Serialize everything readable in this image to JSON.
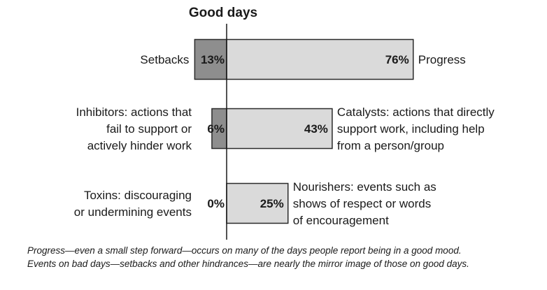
{
  "colors": {
    "negative_bar": "#8e8e8e",
    "positive_bar": "#dadada",
    "bar_stroke": "#2a2a2a",
    "axis": "#1a1a1a"
  },
  "chart_data": {
    "type": "bar",
    "orientation": "horizontal-diverging",
    "title": "Good days",
    "rows": [
      {
        "left_label": [
          "Setbacks"
        ],
        "left_value": 13,
        "left_display": "13%",
        "right_label": [
          "Progress"
        ],
        "right_value": 76,
        "right_display": "76%"
      },
      {
        "left_label": [
          "Inhibitors: actions that",
          "fail to support or",
          "actively hinder work"
        ],
        "left_value": 6,
        "left_display": "6%",
        "right_label": [
          "Catalysts: actions that directly",
          "support work, including help",
          "from a person/group"
        ],
        "right_value": 43,
        "right_display": "43%"
      },
      {
        "left_label": [
          "Toxins: discouraging",
          "or undermining events"
        ],
        "left_value": 0,
        "left_display": "0%",
        "right_label": [
          "Nourishers: events such as",
          "shows of respect or words",
          "of encouragement"
        ],
        "right_value": 25,
        "right_display": "25%"
      }
    ]
  },
  "caption": {
    "line1": "Progress—even a small step forward—occurs on many of the days people report being in a good mood.",
    "line2": "Events on bad days—setbacks and other hindrances—are nearly the mirror image of those on good days."
  }
}
